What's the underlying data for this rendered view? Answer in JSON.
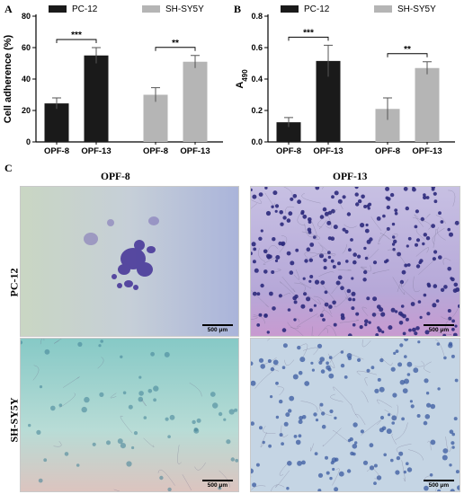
{
  "panels": {
    "a": {
      "letter": "A"
    },
    "b": {
      "letter": "B"
    },
    "c": {
      "letter": "C"
    }
  },
  "colors": {
    "pc12": "#1a1a1a",
    "shsy5y": "#b5b5b5"
  },
  "chart_data": [
    {
      "type": "bar",
      "panel": "A",
      "ylabel": "Cell adherence (%)",
      "xlabel": "",
      "ylim": [
        0,
        80
      ],
      "yticks": [
        0,
        20,
        40,
        60,
        80
      ],
      "legend": [
        {
          "name": "PC-12",
          "color": "#1a1a1a"
        },
        {
          "name": "SH-SY5Y",
          "color": "#b5b5b5"
        }
      ],
      "legend_position": "top",
      "groups": [
        {
          "series": "PC-12",
          "categories": [
            "OPF-8",
            "OPF-13"
          ],
          "values": [
            24.5,
            55
          ],
          "errors": [
            3.5,
            5
          ],
          "significance": "***"
        },
        {
          "series": "SH-SY5Y",
          "categories": [
            "OPF-8",
            "OPF-13"
          ],
          "values": [
            30,
            51
          ],
          "errors": [
            4.5,
            4
          ],
          "significance": "**"
        }
      ]
    },
    {
      "type": "bar",
      "panel": "B",
      "ylabel": "A",
      "ylabel_sub": "490",
      "xlabel": "",
      "ylim": [
        0,
        0.8
      ],
      "yticks": [
        "0.0",
        "0.2",
        "0.4",
        "0.6",
        "0.8"
      ],
      "legend": [
        {
          "name": "PC-12",
          "color": "#1a1a1a"
        },
        {
          "name": "SH-SY5Y",
          "color": "#b5b5b5"
        }
      ],
      "legend_position": "top",
      "groups": [
        {
          "series": "PC-12",
          "categories": [
            "OPF-8",
            "OPF-13"
          ],
          "values": [
            0.125,
            0.515
          ],
          "errors": [
            0.03,
            0.1
          ],
          "significance": "***"
        },
        {
          "series": "SH-SY5Y",
          "categories": [
            "OPF-8",
            "OPF-13"
          ],
          "values": [
            0.21,
            0.47
          ],
          "errors": [
            0.07,
            0.04
          ],
          "significance": "**"
        }
      ]
    }
  ],
  "micrographs": {
    "col_labels": [
      "OPF-8",
      "OPF-13"
    ],
    "row_labels": [
      "PC-12",
      "SH-SY5Y"
    ],
    "scale_label": "500 μm"
  }
}
